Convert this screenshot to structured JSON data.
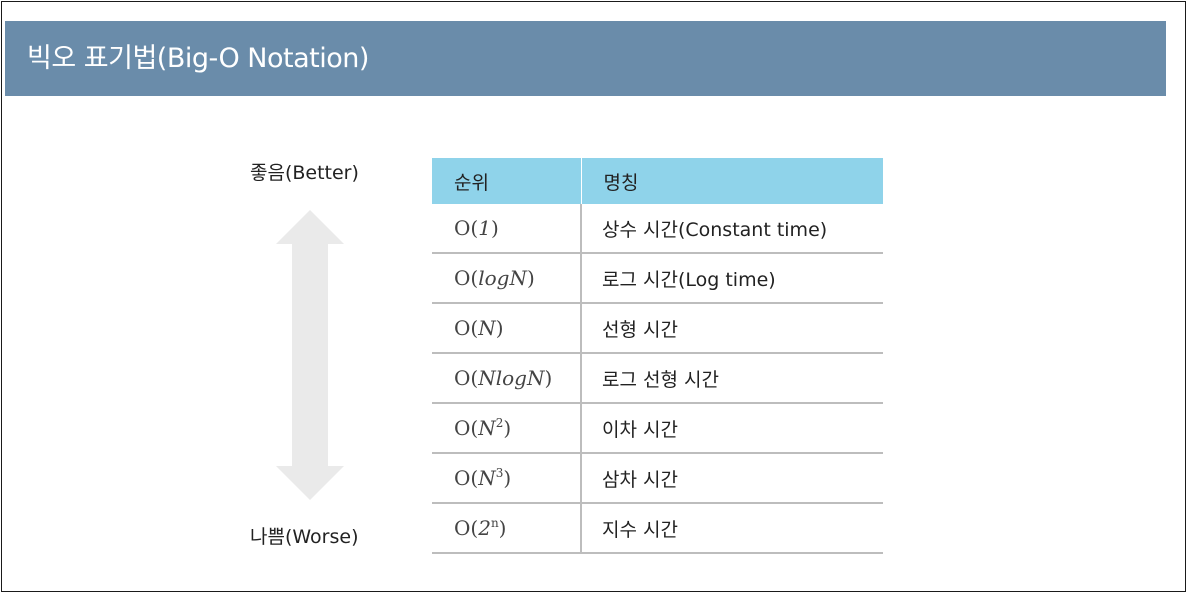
{
  "header": {
    "title": "빅오 표기법(Big-O Notation)"
  },
  "scale": {
    "better_label": "좋음(Better)",
    "worse_label": "나쁨(Worse)",
    "arrow_icon": "double-vertical-arrow-icon"
  },
  "table": {
    "columns": [
      "순위",
      "명칭"
    ],
    "rows": [
      {
        "pre": "O(",
        "mi": "1",
        "sup": "",
        "post": ")",
        "name": "상수 시간(Constant time)"
      },
      {
        "pre": "O(",
        "mi": "logN",
        "sup": "",
        "post": ")",
        "name": "로그 시간(Log time)"
      },
      {
        "pre": "O(",
        "mi": "N",
        "sup": "",
        "post": ")",
        "name": "선형 시간"
      },
      {
        "pre": "O(",
        "mi": "NlogN",
        "sup": "",
        "post": ")",
        "name": "로그 선형 시간"
      },
      {
        "pre": "O(",
        "mi": "N",
        "sup": "2",
        "post": ")",
        "name": "이차 시간"
      },
      {
        "pre": "O(",
        "mi": "N",
        "sup": "3",
        "post": ")",
        "name": "삼차 시간"
      },
      {
        "pre": "O(",
        "mi": "2",
        "sup": "n",
        "post": ")",
        "name": "지수 시간"
      }
    ]
  },
  "colors": {
    "header_bg": "#6a8caa",
    "table_header_bg": "#8fd3ea",
    "arrow": "#eaeaea"
  }
}
